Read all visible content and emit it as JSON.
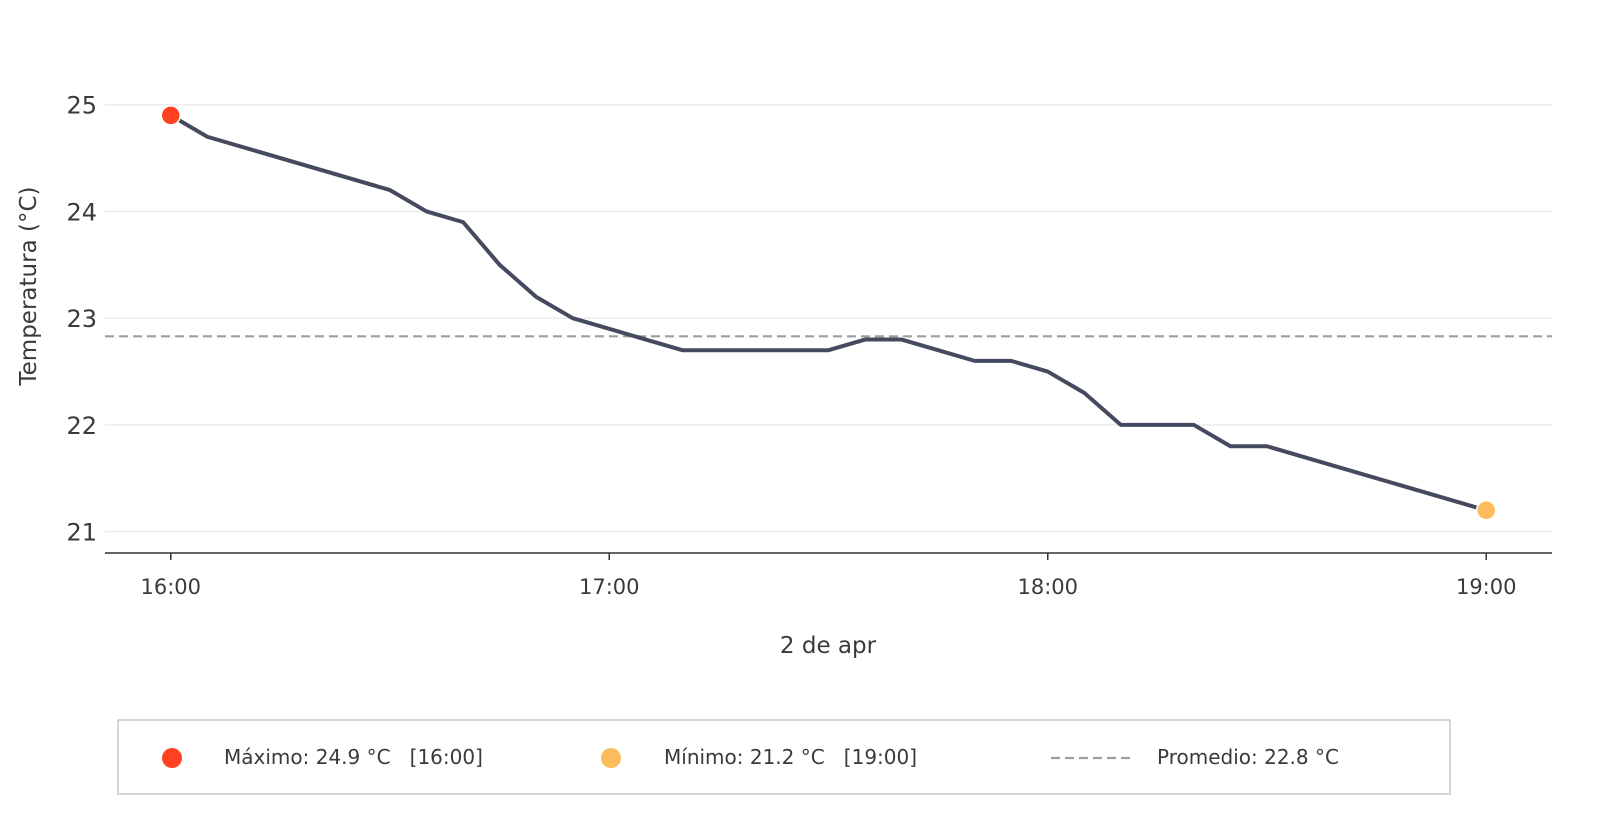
{
  "chart_data": {
    "type": "line",
    "xlabel": "2 de apr",
    "ylabel": "Temperatura (°C)",
    "ylim": [
      20.8,
      25.7
    ],
    "xlim": [
      "15:51",
      "19:09"
    ],
    "y_ticks": [
      "21",
      "22",
      "23",
      "24",
      "25"
    ],
    "x_ticks": [
      "16:00",
      "17:00",
      "18:00",
      "19:00"
    ],
    "grid": "horizontal",
    "legend_position": "bottom",
    "series": [
      {
        "x": [
          "16:00",
          "16:05",
          "16:30",
          "16:35",
          "16:40",
          "16:45",
          "16:50",
          "16:55",
          "17:00",
          "17:05",
          "17:10",
          "17:30",
          "17:35",
          "17:40",
          "17:45",
          "17:50",
          "17:55",
          "18:00",
          "18:05",
          "18:10",
          "18:20",
          "18:25",
          "18:30",
          "19:00"
        ],
        "y": [
          24.9,
          24.7,
          24.2,
          24.0,
          23.9,
          23.5,
          23.2,
          23.0,
          22.9,
          22.8,
          22.7,
          22.7,
          22.8,
          22.8,
          22.7,
          22.6,
          22.6,
          22.5,
          22.3,
          22.0,
          22.0,
          21.8,
          21.8,
          21.2
        ],
        "color": "#454a5f"
      }
    ],
    "average": {
      "value": 22.83,
      "color": "#9e9e9e"
    },
    "markers": [
      {
        "role": "max",
        "x": "16:00",
        "y": 24.9,
        "color": "#ff4122"
      },
      {
        "role": "min",
        "x": "19:00",
        "y": 21.2,
        "color": "#fdbc5c"
      }
    ],
    "legend": {
      "max_label": "Máximo: 24.9 °C   [16:00]",
      "min_label": "Mínimo: 21.2 °C   [19:00]",
      "avg_label": "Promedio: 22.8 °C"
    }
  }
}
